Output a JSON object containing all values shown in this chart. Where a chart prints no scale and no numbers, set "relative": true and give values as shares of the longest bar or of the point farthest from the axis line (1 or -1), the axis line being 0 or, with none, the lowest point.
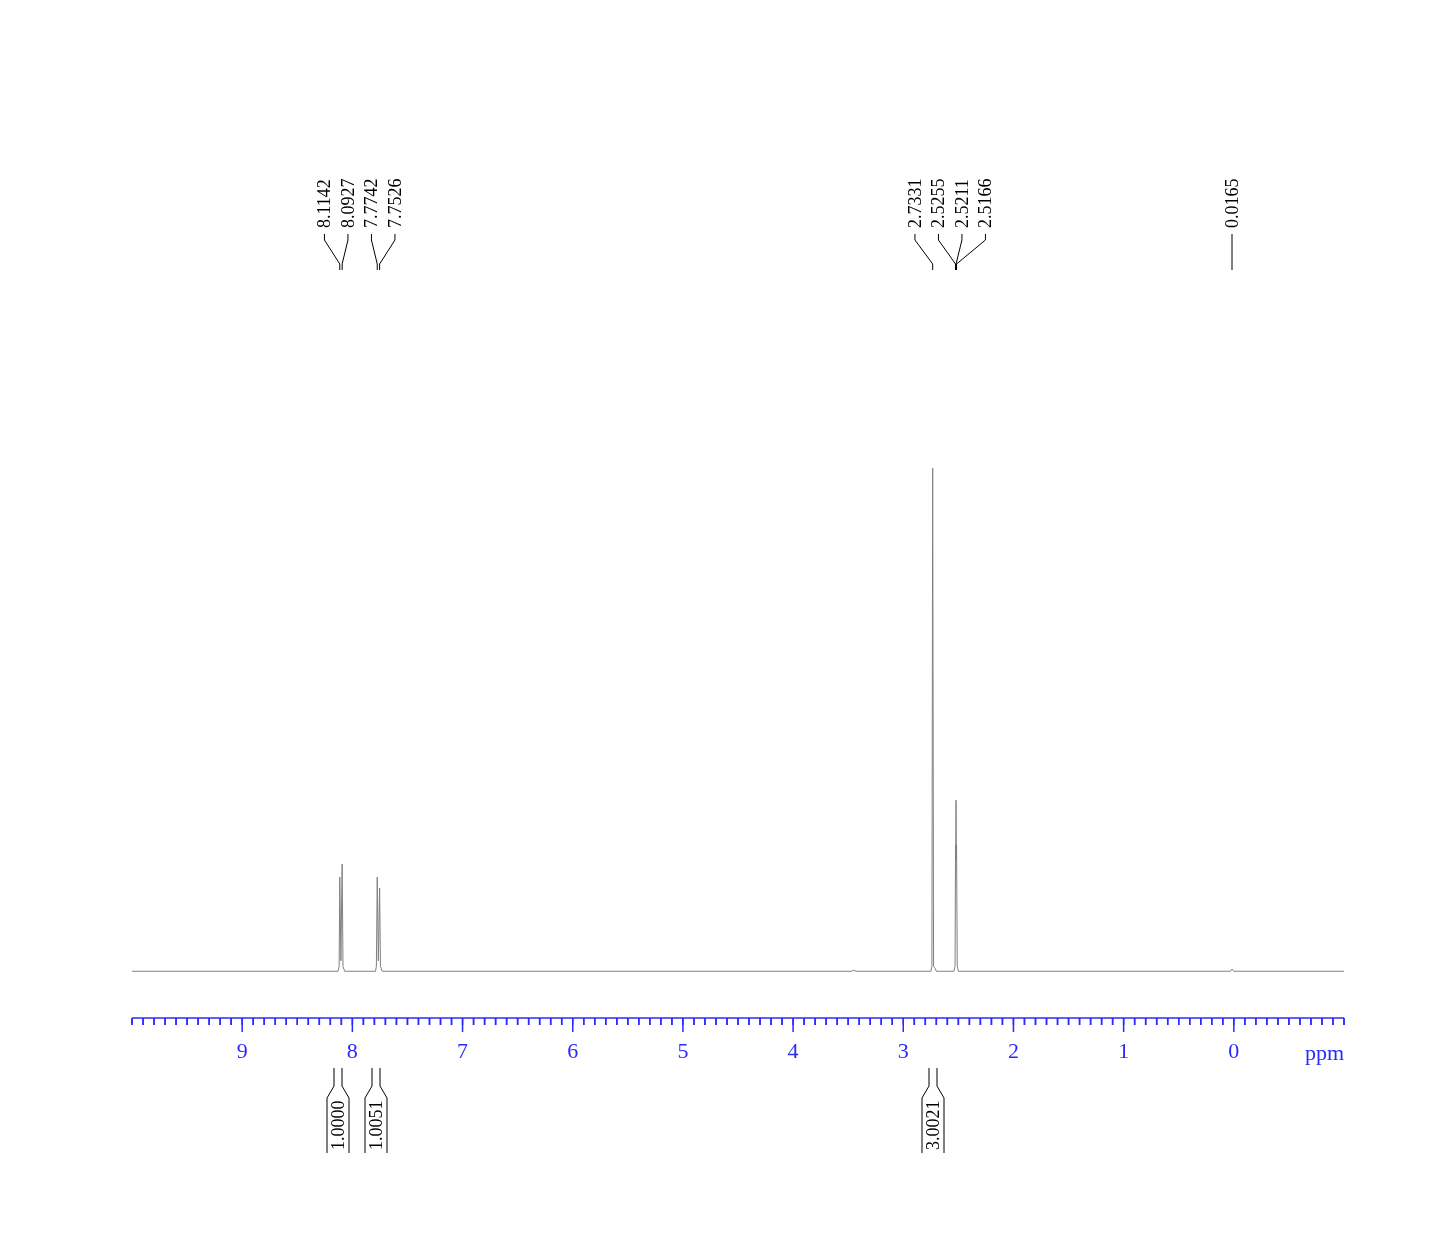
{
  "chart_data": {
    "type": "line",
    "relative": true,
    "xlabel": "ppm",
    "xlim": [
      10,
      -1
    ],
    "xticks": [
      {
        "value": 10,
        "label": null
      },
      {
        "value": 9.9,
        "label": null
      },
      {
        "value": 9.8,
        "label": null
      },
      {
        "value": 9.7,
        "label": null
      },
      {
        "value": 9.6,
        "label": null
      },
      {
        "value": 9.5,
        "label": null
      },
      {
        "value": 9.4,
        "label": null
      },
      {
        "value": 9.3,
        "label": null
      },
      {
        "value": 9.2,
        "label": null
      },
      {
        "value": 9.1,
        "label": null
      },
      9,
      {
        "value": 8.9,
        "label": null
      },
      {
        "value": 8.8,
        "label": null
      },
      {
        "value": 8.7,
        "label": null
      },
      {
        "value": 8.6,
        "label": null
      },
      {
        "value": 8.5,
        "label": null
      },
      {
        "value": 8.4,
        "label": null
      },
      {
        "value": 8.3,
        "label": null
      },
      {
        "value": 8.2,
        "label": null
      },
      {
        "value": 8.1,
        "label": null
      },
      8,
      {
        "value": 7.9,
        "label": null
      },
      {
        "value": 7.8,
        "label": null
      },
      {
        "value": 7.7,
        "label": null
      },
      {
        "value": 7.6,
        "label": null
      },
      {
        "value": 7.5,
        "label": null
      },
      {
        "value": 7.4,
        "label": null
      },
      {
        "value": 7.3,
        "label": null
      },
      {
        "value": 7.2,
        "label": null
      },
      {
        "value": 7.1,
        "label": null
      },
      7,
      {
        "value": 6.9,
        "label": null
      },
      {
        "value": 6.8,
        "label": null
      },
      {
        "value": 6.7,
        "label": null
      },
      {
        "value": 6.6,
        "label": null
      },
      {
        "value": 6.5,
        "label": null
      },
      {
        "value": 6.4,
        "label": null
      },
      {
        "value": 6.3,
        "label": null
      },
      {
        "value": 6.2,
        "label": null
      },
      {
        "value": 6.1,
        "label": null
      },
      6,
      {
        "value": 5.9,
        "label": null
      },
      {
        "value": 5.8,
        "label": null
      },
      {
        "value": 5.7,
        "label": null
      },
      {
        "value": 5.6,
        "label": null
      },
      {
        "value": 5.5,
        "label": null
      },
      {
        "value": 5.4,
        "label": null
      },
      {
        "value": 5.3,
        "label": null
      },
      {
        "value": 5.2,
        "label": null
      },
      {
        "value": 5.1,
        "label": null
      },
      5,
      {
        "value": 4.9,
        "label": null
      },
      {
        "value": 4.8,
        "label": null
      },
      {
        "value": 4.7,
        "label": null
      },
      {
        "value": 4.6,
        "label": null
      },
      {
        "value": 4.5,
        "label": null
      },
      {
        "value": 4.4,
        "label": null
      },
      {
        "value": 4.3,
        "label": null
      },
      {
        "value": 4.2,
        "label": null
      },
      {
        "value": 4.1,
        "label": null
      },
      4,
      {
        "value": 3.9,
        "label": null
      },
      {
        "value": 3.8,
        "label": null
      },
      {
        "value": 3.7,
        "label": null
      },
      {
        "value": 3.6,
        "label": null
      },
      {
        "value": 3.5,
        "label": null
      },
      {
        "value": 3.4,
        "label": null
      },
      {
        "value": 3.3,
        "label": null
      },
      {
        "value": 3.2,
        "label": null
      },
      {
        "value": 3.1,
        "label": null
      },
      3,
      {
        "value": 2.9,
        "label": null
      },
      {
        "value": 2.8,
        "label": null
      },
      {
        "value": 2.7,
        "label": null
      },
      {
        "value": 2.6,
        "label": null
      },
      {
        "value": 2.5,
        "label": null
      },
      {
        "value": 2.4,
        "label": null
      },
      {
        "value": 2.3,
        "label": null
      },
      {
        "value": 2.2,
        "label": null
      },
      {
        "value": 2.1,
        "label": null
      },
      2,
      {
        "value": 1.9,
        "label": null
      },
      {
        "value": 1.8,
        "label": null
      },
      {
        "value": 1.7,
        "label": null
      },
      {
        "value": 1.6,
        "label": null
      },
      {
        "value": 1.5,
        "label": null
      },
      {
        "value": 1.4,
        "label": null
      },
      {
        "value": 1.3,
        "label": null
      },
      {
        "value": 1.2,
        "label": null
      },
      {
        "value": 1.1,
        "label": null
      },
      1,
      {
        "value": 0.9,
        "label": null
      },
      {
        "value": 0.8,
        "label": null
      },
      {
        "value": 0.7,
        "label": null
      },
      {
        "value": 0.6,
        "label": null
      },
      {
        "value": 0.5,
        "label": null
      },
      {
        "value": 0.4,
        "label": null
      },
      {
        "value": 0.3,
        "label": null
      },
      {
        "value": 0.2,
        "label": null
      },
      {
        "value": 0.1,
        "label": null
      },
      0,
      {
        "value": -0.1,
        "label": null
      },
      {
        "value": -0.2,
        "label": null
      },
      {
        "value": -0.3,
        "label": null
      },
      {
        "value": -0.4,
        "label": null
      },
      {
        "value": -0.5,
        "label": null
      },
      {
        "value": -0.6,
        "label": null
      },
      {
        "value": -0.7,
        "label": null
      },
      {
        "value": -0.8,
        "label": null
      },
      {
        "value": -0.9,
        "label": null
      },
      {
        "value": -1,
        "label": null
      }
    ],
    "series": [
      {
        "color": "#808080",
        "x": [
          10,
          8.13,
          8.12,
          8.1142,
          8.104,
          8.0927,
          8.085,
          8.07,
          7.79,
          7.782,
          7.7742,
          7.764,
          7.7526,
          7.745,
          7.73,
          3.47,
          3.45,
          3.43,
          2.75,
          2.74,
          2.7331,
          2.725,
          2.71,
          2.7,
          2.54,
          2.53,
          2.5255,
          2.5233,
          2.5211,
          2.5188,
          2.5166,
          2.51,
          2.5,
          0.03,
          0.0165,
          0,
          -1
        ],
        "values": [
          0.085,
          0.085,
          0.094,
          0.256,
          0.104,
          0.28,
          0.094,
          0.085,
          0.085,
          0.094,
          0.256,
          0.104,
          0.236,
          0.094,
          0.085,
          0.085,
          0.087,
          0.085,
          0.085,
          0.094,
          1,
          0.094,
          0.09,
          0.085,
          0.085,
          0.094,
          0.315,
          0.29,
          0.396,
          0.29,
          0.315,
          0.094,
          0.085,
          0.085,
          0.089,
          0.085,
          0.085
        ]
      }
    ],
    "annotations": [
      {
        "text": "8.1142",
        "x": 8.1142
      },
      {
        "text": "8.0927",
        "x": 8.0927
      },
      {
        "text": "7.7742",
        "x": 7.7742
      },
      {
        "text": "7.7526",
        "x": 7.7526
      },
      {
        "text": "2.7331",
        "x": 2.7331
      },
      {
        "text": "2.5255",
        "x": 2.5255
      },
      {
        "text": "2.5211",
        "x": 2.5211
      },
      {
        "text": "2.5166",
        "x": 2.5166
      },
      {
        "text": "0.0165",
        "x": 0.0165
      },
      "1.0000",
      "1.0051",
      "3.0021"
    ]
  }
}
